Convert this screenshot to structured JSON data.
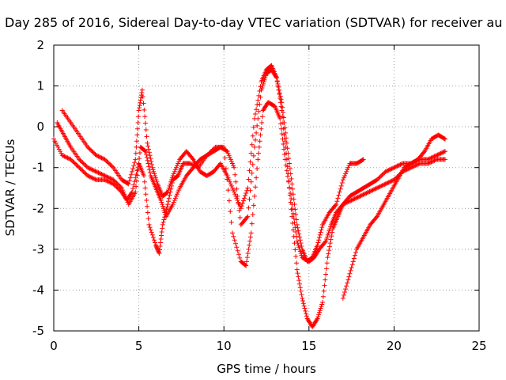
{
  "chart_data": {
    "type": "scatter",
    "title": "Day 285 of 2016, Sidereal Day-to-day VTEC variation (SDTVAR) for receiver au",
    "xlabel": "GPS time / hours",
    "ylabel": "SDTVAR / TECUs",
    "xlim": [
      0,
      25
    ],
    "ylim": [
      -5,
      2
    ],
    "xticks": [
      "0",
      "5",
      "10",
      "15",
      "20",
      "25"
    ],
    "yticks": [
      "2",
      "1",
      "0",
      "-1",
      "-2",
      "-3",
      "-4",
      "-5"
    ],
    "grid": true,
    "marker": "+",
    "series_color": "#ff0000",
    "series": [
      {
        "x": [
          0.0,
          0.5,
          1.0,
          1.5,
          2.0,
          2.5,
          3.0,
          3.5,
          4.0,
          4.3,
          4.6,
          5.0,
          5.3,
          5.6,
          6.0,
          6.2,
          6.4,
          6.7,
          7.0,
          7.3,
          7.6,
          8.0,
          8.5,
          9.0,
          9.5,
          10.0,
          10.5,
          11.0,
          11.3,
          11.6,
          12.0,
          12.3,
          12.6,
          13.0,
          13.3,
          13.6,
          14.0,
          14.3,
          14.6,
          15.0,
          15.3,
          15.6,
          16.0,
          16.3,
          16.6,
          17.0,
          17.5,
          18.0,
          18.5,
          19.0,
          19.5,
          20.0,
          20.5,
          21.0,
          21.5,
          22.0,
          22.5,
          23.0
        ],
        "y": [
          -0.3,
          -0.7,
          -0.8,
          -1.0,
          -1.2,
          -1.3,
          -1.3,
          -1.4,
          -1.6,
          -1.8,
          -1.6,
          -0.9,
          -1.2,
          -2.4,
          -2.9,
          -3.1,
          -2.4,
          -1.9,
          -1.3,
          -1.2,
          -0.9,
          -0.9,
          -1.0,
          -0.7,
          -0.5,
          -0.5,
          -2.6,
          -3.3,
          -3.4,
          -2.6,
          -0.8,
          0.4,
          0.6,
          0.5,
          0.2,
          -0.8,
          -1.9,
          -2.8,
          -3.2,
          -3.3,
          -3.2,
          -3.0,
          -2.8,
          -2.4,
          -2.1,
          -1.9,
          -1.8,
          -1.7,
          -1.6,
          -1.5,
          -1.4,
          -1.3,
          -1.1,
          -1.0,
          -0.9,
          -0.9,
          -0.8,
          -0.8
        ]
      },
      {
        "x": [
          0.2,
          0.6,
          1.0,
          1.5,
          2.0,
          2.5,
          3.0,
          3.5,
          4.0,
          4.4,
          4.8,
          5.1,
          5.4,
          5.7,
          6.0,
          6.3,
          6.6,
          7.0,
          7.4,
          7.8,
          8.2,
          8.6,
          9.0,
          9.4,
          9.8,
          10.2,
          10.6,
          11.0,
          11.4,
          11.8,
          12.2,
          12.5,
          12.8,
          13.1,
          13.4,
          13.7,
          14.0,
          14.3,
          14.6,
          14.9,
          15.2,
          15.5,
          15.8,
          16.1,
          16.4,
          16.7,
          17.0,
          17.4,
          17.8,
          18.2,
          18.6,
          19.0,
          19.5,
          20.0,
          20.5,
          21.0,
          21.5,
          22.0,
          22.5,
          23.0
        ],
        "y": [
          0.1,
          -0.2,
          -0.5,
          -0.8,
          -1.0,
          -1.1,
          -1.2,
          -1.3,
          -1.5,
          -1.9,
          -1.6,
          -0.5,
          -0.6,
          -1.2,
          -1.5,
          -1.8,
          -2.2,
          -1.9,
          -1.5,
          -1.2,
          -1.0,
          -0.8,
          -0.7,
          -0.6,
          -0.5,
          -0.6,
          -1.0,
          -2.4,
          -2.2,
          -0.5,
          0.9,
          1.3,
          1.4,
          1.2,
          0.4,
          -0.8,
          -2.2,
          -3.5,
          -4.2,
          -4.7,
          -4.9,
          -4.7,
          -4.3,
          -3.2,
          -2.5,
          -2.2,
          -1.9,
          -1.7,
          -1.6,
          -1.5,
          -1.4,
          -1.3,
          -1.1,
          -1.0,
          -0.9,
          -0.9,
          -0.8,
          -0.8,
          -0.7,
          -0.6
        ]
      },
      {
        "x": [
          0.5,
          1.0,
          1.5,
          2.0,
          2.5,
          3.0,
          3.5,
          4.0,
          4.4,
          4.8,
          5.0,
          5.2,
          5.5,
          5.8,
          6.1,
          6.4,
          6.7,
          7.0,
          7.4,
          7.8,
          8.2,
          8.6,
          9.0,
          9.4,
          9.8,
          10.2,
          10.6,
          11.0,
          11.4,
          11.8,
          12.2,
          12.5,
          12.8,
          13.1,
          13.4,
          13.7,
          14.0,
          14.3,
          14.6,
          14.9,
          15.2,
          15.5,
          15.8,
          16.2,
          16.6,
          17.0,
          17.4,
          17.8,
          18.2
        ],
        "y": [
          0.4,
          0.1,
          -0.2,
          -0.5,
          -0.7,
          -0.8,
          -1.0,
          -1.3,
          -1.4,
          -0.8,
          0.4,
          0.9,
          -0.4,
          -1.0,
          -1.4,
          -1.7,
          -1.6,
          -1.2,
          -0.8,
          -0.6,
          -0.8,
          -1.1,
          -1.2,
          -1.1,
          -0.9,
          -1.2,
          -1.6,
          -2.0,
          -1.5,
          0.2,
          1.1,
          1.4,
          1.5,
          1.2,
          0.6,
          -0.4,
          -1.4,
          -2.4,
          -3.0,
          -3.3,
          -3.2,
          -2.9,
          -2.4,
          -2.1,
          -1.9,
          -1.3,
          -0.9,
          -0.9,
          -0.8
        ]
      },
      {
        "x": [
          17.0,
          17.4,
          17.8,
          18.2,
          18.6,
          19.0,
          19.4,
          19.8,
          20.2,
          20.6,
          21.0,
          21.4,
          21.8,
          22.2,
          22.6,
          23.0
        ],
        "y": [
          -4.2,
          -3.6,
          -3.0,
          -2.7,
          -2.4,
          -2.2,
          -1.9,
          -1.6,
          -1.3,
          -1.0,
          -0.9,
          -0.8,
          -0.6,
          -0.3,
          -0.2,
          -0.3
        ]
      }
    ]
  }
}
